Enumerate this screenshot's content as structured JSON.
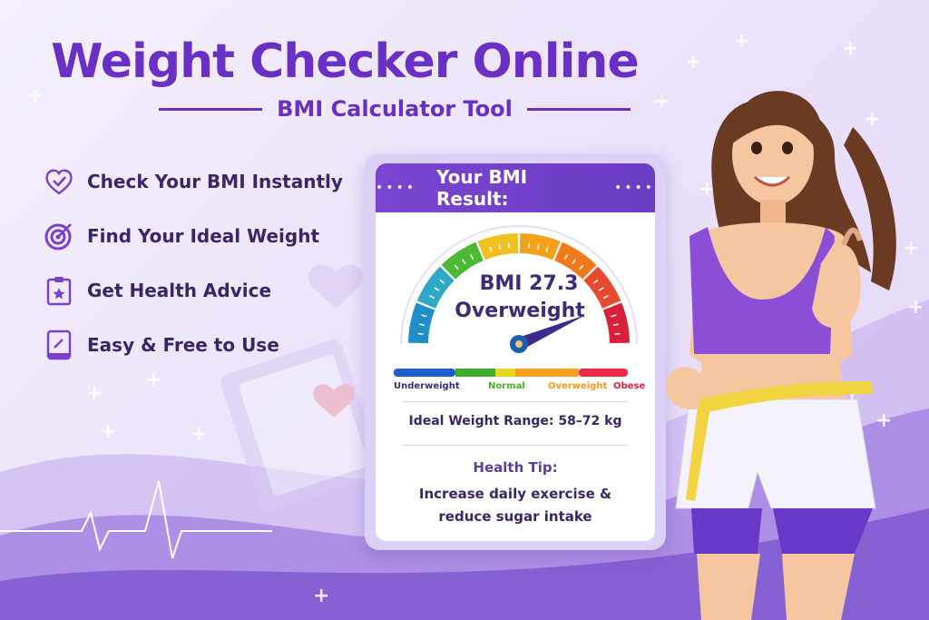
{
  "header": {
    "title": "Weight Checker Online",
    "subtitle": "BMI Calculator Tool"
  },
  "features": [
    {
      "icon": "heart-check-icon",
      "label": "Check Your BMI Instantly"
    },
    {
      "icon": "target-icon",
      "label": "Find Your Ideal Weight"
    },
    {
      "icon": "clipboard-star-icon",
      "label": "Get Health Advice"
    },
    {
      "icon": "tablet-icon",
      "label": "Easy & Free to Use"
    }
  ],
  "result_card": {
    "heading": "Your BMI Result:",
    "bmi_label": "BMI 27.3",
    "bmi_value": 27.3,
    "category": "Overweight",
    "scale_labels": [
      {
        "label": "Underweight",
        "color": "#3a2a7a"
      },
      {
        "label": "Normal",
        "color": "#44b02a"
      },
      {
        "label": "Overweight",
        "color": "#f39a1a"
      },
      {
        "label": "Obese",
        "color": "#e0203c"
      }
    ],
    "ideal_weight": "Ideal Weight Range: 58–72 kg",
    "tip_heading": "Health Tip:",
    "tip_text": "Increase daily exercise & reduce sugar intake"
  },
  "colors": {
    "accent": "#6a2fc4",
    "text": "#3b2566",
    "gauge": [
      "#1f8fc8",
      "#2fa8c8",
      "#4cb834",
      "#f0c020",
      "#f5a01a",
      "#f07a1a",
      "#e84a30",
      "#d8203a"
    ]
  }
}
